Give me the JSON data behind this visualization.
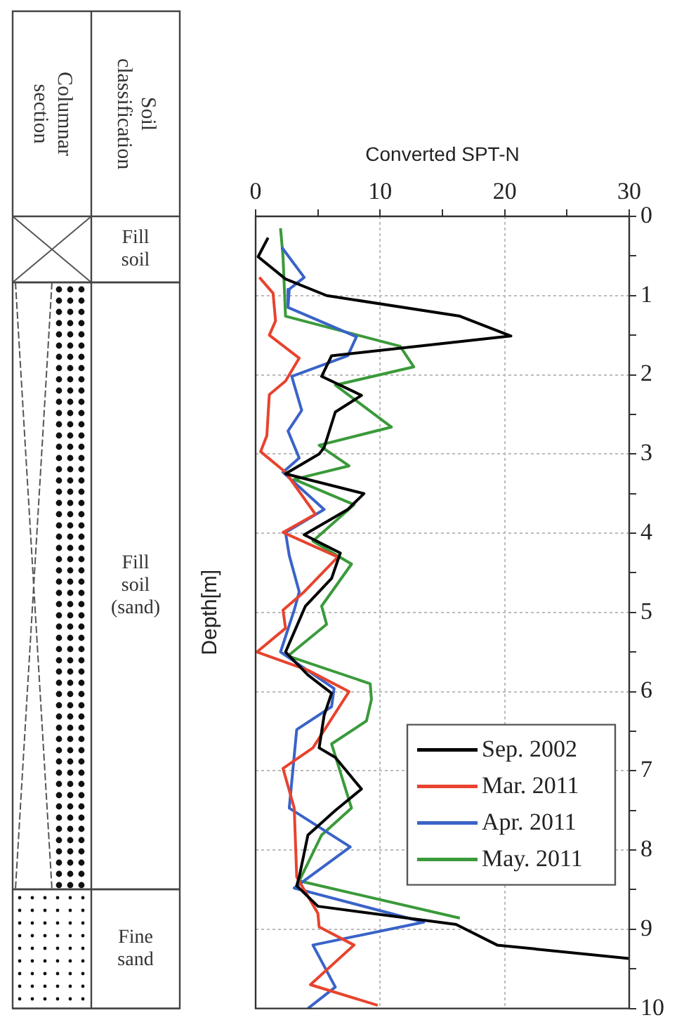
{
  "chart_data": {
    "type": "line",
    "xlabel": "Converted SPT-N",
    "ylabel": "Depth[m]",
    "xlim": [
      0,
      30
    ],
    "xticks": [
      0,
      {
        "value": 5,
        "label": null
      },
      10,
      {
        "value": 15,
        "label": null
      },
      20,
      {
        "value": 25,
        "label": null
      },
      30
    ],
    "ylim": [
      10,
      0
    ],
    "yticks": [
      0,
      {
        "value": 0.5,
        "label": null
      },
      1,
      {
        "value": 1.5,
        "label": null
      },
      2,
      {
        "value": 2.5,
        "label": null
      },
      3,
      {
        "value": 3.5,
        "label": null
      },
      4,
      {
        "value": 4.5,
        "label": null
      },
      5,
      {
        "value": 5.5,
        "label": null
      },
      6,
      {
        "value": 6.5,
        "label": null
      },
      7,
      {
        "value": 7.5,
        "label": null
      },
      8,
      {
        "value": 8.5,
        "label": null
      },
      9,
      {
        "value": 9.5,
        "label": null
      },
      10
    ],
    "grid": true,
    "legend": "bottom right",
    "line_style": "solid",
    "annotations": [
      "Columnar section",
      "Soil classification",
      "Fill soil",
      "Fill soil (sand)",
      "Fine sand"
    ],
    "series": [
      {
        "name": "Sep. 2002",
        "color": "#000000",
        "x": [
          1.0,
          0.2,
          2.4,
          5.7,
          16.4,
          20.5,
          6.1,
          5.3,
          8.5,
          6.4,
          5.5,
          5.1,
          2.4,
          8.7,
          7.4,
          3.9,
          6.8,
          6.1,
          4.0,
          2.9,
          2.4,
          4.2,
          6.1,
          5.5,
          5.1,
          6.4,
          8.5,
          6.4,
          4.2,
          3.5,
          3.3,
          5.0,
          16.1,
          19.4,
          30
        ],
        "values": [
          0.27,
          0.51,
          0.79,
          1.0,
          1.26,
          1.51,
          1.76,
          2.02,
          2.26,
          2.47,
          2.92,
          3.0,
          3.25,
          3.5,
          3.7,
          4.02,
          4.25,
          4.57,
          4.92,
          5.32,
          5.5,
          5.79,
          6.02,
          6.3,
          6.71,
          6.83,
          7.23,
          7.5,
          7.81,
          8.34,
          8.45,
          8.71,
          8.94,
          9.2,
          9.37
        ]
      },
      {
        "name": "Mar. 2011",
        "color": "#e8432e",
        "x": [
          0.3,
          1.4,
          1.6,
          1.1,
          3.5,
          2.4,
          1.1,
          0.9,
          0.4,
          2.4,
          4.8,
          2.2,
          6.6,
          3.9,
          2.2,
          2.4,
          0.1,
          4.2,
          7.5,
          4.6,
          2.2,
          3.1,
          3.3,
          5.0,
          5.1,
          7.9,
          4.4,
          9.8
        ],
        "values": [
          0.77,
          0.97,
          1.32,
          1.5,
          1.79,
          2.08,
          2.25,
          2.77,
          2.97,
          3.23,
          3.76,
          3.99,
          4.3,
          4.74,
          4.97,
          5.2,
          5.5,
          5.73,
          6.0,
          6.71,
          6.97,
          7.47,
          8.34,
          8.8,
          8.97,
          9.2,
          9.7,
          9.96
        ]
      },
      {
        "name": "Apr. 2011",
        "color": "#3a63c8",
        "x": [
          2.1,
          3.9,
          2.7,
          2.6,
          8.1,
          7.4,
          2.9,
          3.7,
          2.6,
          3.5,
          2.2,
          5.5,
          2.4,
          2.7,
          3.5,
          3.1,
          2.0,
          6.3,
          6.1,
          3.3,
          2.7,
          7.6,
          3.1,
          13.5,
          4.6,
          6.4,
          4.2
        ],
        "values": [
          0.39,
          0.77,
          0.92,
          1.15,
          1.52,
          1.76,
          2.02,
          2.45,
          2.71,
          3.05,
          3.23,
          3.7,
          3.99,
          4.28,
          4.74,
          4.97,
          5.5,
          5.96,
          6.19,
          6.48,
          7.47,
          7.96,
          8.48,
          8.91,
          9.2,
          9.73,
          10.0
        ]
      },
      {
        "name": "May. 2011",
        "color": "#3a9a3a",
        "x": [
          2.0,
          2.2,
          2.4,
          11.6,
          12.7,
          6.4,
          10.9,
          5.1,
          7.5,
          3.1,
          7.9,
          4.6,
          7.7,
          5.3,
          5.7,
          2.6,
          9.2,
          9.3,
          8.9,
          6.1,
          7.7,
          5.3,
          3.5,
          16.4
        ],
        "values": [
          0.15,
          0.51,
          1.26,
          1.64,
          1.9,
          2.13,
          2.66,
          2.89,
          3.15,
          3.32,
          3.64,
          4.1,
          4.39,
          4.92,
          5.15,
          5.55,
          5.9,
          6.1,
          6.37,
          6.66,
          7.47,
          7.81,
          8.39,
          8.86
        ]
      }
    ]
  }
}
